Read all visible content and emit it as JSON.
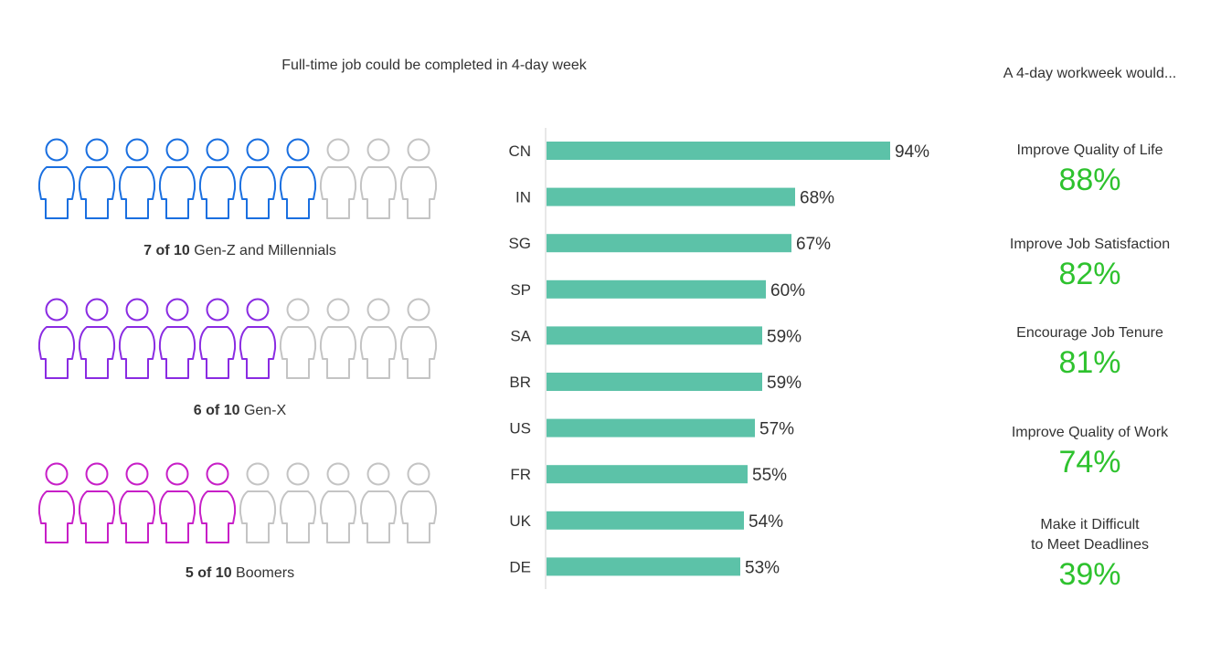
{
  "chart_title": "Full-time job could be completed in 4-day week",
  "right_panel_title": "A 4-day workweek would...",
  "generations": [
    {
      "count": "7 of 10",
      "label": "Gen-Z and Millennials",
      "filled": 7,
      "total": 10,
      "color": "#1a6fe0"
    },
    {
      "count": "6 of 10",
      "label": "Gen-X",
      "filled": 6,
      "total": 10,
      "color": "#8a2be2"
    },
    {
      "count": "5 of 10",
      "label": "Boomers",
      "filled": 5,
      "total": 10,
      "color": "#c71fc7"
    }
  ],
  "empty_icon_color": "#c4c4c4",
  "chart_data": {
    "type": "bar",
    "orientation": "horizontal",
    "categories": [
      "CN",
      "IN",
      "SG",
      "SP",
      "SA",
      "BR",
      "US",
      "FR",
      "UK",
      "DE"
    ],
    "values": [
      94,
      68,
      67,
      60,
      59,
      59,
      57,
      55,
      54,
      53
    ],
    "value_labels": [
      "94%",
      "68%",
      "67%",
      "60%",
      "59%",
      "59%",
      "57%",
      "55%",
      "54%",
      "53%"
    ],
    "title": "Full-time job could be completed in 4-day week",
    "xlim": [
      0,
      100
    ],
    "grid": false,
    "bar_color": "#5cc2a8"
  },
  "outcomes": [
    {
      "label": "Improve Quality of Life",
      "value": "88%"
    },
    {
      "label": "Improve Job Satisfaction",
      "value": "82%"
    },
    {
      "label": "Encourage Job Tenure",
      "value": "81%"
    },
    {
      "label": "Improve Quality of Work",
      "value": "74%"
    },
    {
      "label": "Make it Difficult\nto Meet Deadlines",
      "value": "39%"
    }
  ],
  "outcome_color": "#2ec22e"
}
